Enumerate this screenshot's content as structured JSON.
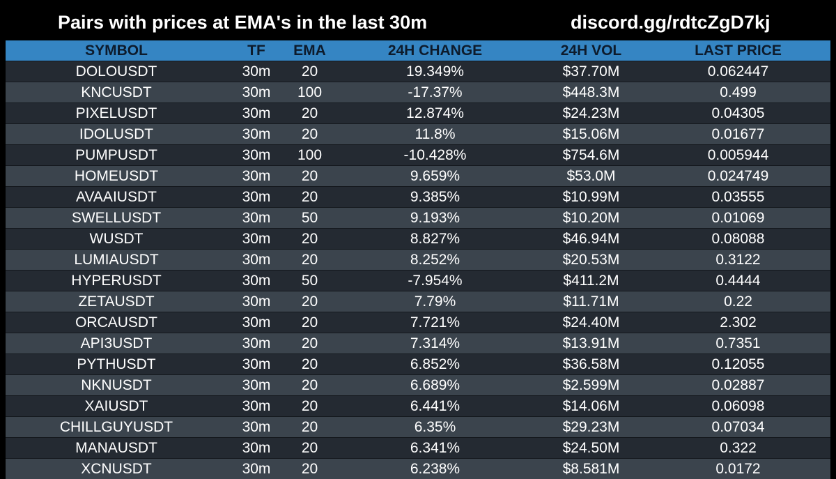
{
  "header": {
    "title": "Pairs with prices at EMA's in the last 30m",
    "invite": "discord.gg/rdtcZgD7kj"
  },
  "table": {
    "columns": [
      "SYMBOL",
      "TF",
      "EMA",
      "24H CHANGE",
      "24H VOL",
      "LAST PRICE"
    ],
    "rows": [
      {
        "symbol": "DOLOUSDT",
        "tf": "30m",
        "ema": "20",
        "change": "19.349%",
        "vol": "$37.70M",
        "price": "0.062447"
      },
      {
        "symbol": "KNCUSDT",
        "tf": "30m",
        "ema": "100",
        "change": "-17.37%",
        "vol": "$448.3M",
        "price": "0.499"
      },
      {
        "symbol": "PIXELUSDT",
        "tf": "30m",
        "ema": "20",
        "change": "12.874%",
        "vol": "$24.23M",
        "price": "0.04305"
      },
      {
        "symbol": "IDOLUSDT",
        "tf": "30m",
        "ema": "20",
        "change": "11.8%",
        "vol": "$15.06M",
        "price": "0.01677"
      },
      {
        "symbol": "PUMPUSDT",
        "tf": "30m",
        "ema": "100",
        "change": "-10.428%",
        "vol": "$754.6M",
        "price": "0.005944"
      },
      {
        "symbol": "HOMEUSDT",
        "tf": "30m",
        "ema": "20",
        "change": "9.659%",
        "vol": "$53.0M",
        "price": "0.024749"
      },
      {
        "symbol": "AVAAIUSDT",
        "tf": "30m",
        "ema": "20",
        "change": "9.385%",
        "vol": "$10.99M",
        "price": "0.03555"
      },
      {
        "symbol": "SWELLUSDT",
        "tf": "30m",
        "ema": "50",
        "change": "9.193%",
        "vol": "$10.20M",
        "price": "0.01069"
      },
      {
        "symbol": "WUSDT",
        "tf": "30m",
        "ema": "20",
        "change": "8.827%",
        "vol": "$46.94M",
        "price": "0.08088"
      },
      {
        "symbol": "LUMIAUSDT",
        "tf": "30m",
        "ema": "20",
        "change": "8.252%",
        "vol": "$20.53M",
        "price": "0.3122"
      },
      {
        "symbol": "HYPERUSDT",
        "tf": "30m",
        "ema": "50",
        "change": "-7.954%",
        "vol": "$411.2M",
        "price": "0.4444"
      },
      {
        "symbol": "ZETAUSDT",
        "tf": "30m",
        "ema": "20",
        "change": "7.79%",
        "vol": "$11.71M",
        "price": "0.22"
      },
      {
        "symbol": "ORCAUSDT",
        "tf": "30m",
        "ema": "20",
        "change": "7.721%",
        "vol": "$24.40M",
        "price": "2.302"
      },
      {
        "symbol": "API3USDT",
        "tf": "30m",
        "ema": "20",
        "change": "7.314%",
        "vol": "$13.91M",
        "price": "0.7351"
      },
      {
        "symbol": "PYTHUSDT",
        "tf": "30m",
        "ema": "20",
        "change": "6.852%",
        "vol": "$36.58M",
        "price": "0.12055"
      },
      {
        "symbol": "NKNUSDT",
        "tf": "30m",
        "ema": "20",
        "change": "6.689%",
        "vol": "$2.599M",
        "price": "0.02887"
      },
      {
        "symbol": "XAIUSDT",
        "tf": "30m",
        "ema": "20",
        "change": "6.441%",
        "vol": "$14.06M",
        "price": "0.06098"
      },
      {
        "symbol": "CHILLGUYUSDT",
        "tf": "30m",
        "ema": "20",
        "change": "6.35%",
        "vol": "$29.23M",
        "price": "0.07034"
      },
      {
        "symbol": "MANAUSDT",
        "tf": "30m",
        "ema": "20",
        "change": "6.341%",
        "vol": "$24.50M",
        "price": "0.322"
      },
      {
        "symbol": "XCNUSDT",
        "tf": "30m",
        "ema": "20",
        "change": "6.238%",
        "vol": "$8.581M",
        "price": "0.0172"
      }
    ]
  },
  "colors": {
    "background": "#000000",
    "header_row": "#3585c3",
    "header_text": "#0d1b2c",
    "row_dark": "#242a32",
    "row_light": "#3b444d",
    "text": "#ffffff"
  }
}
